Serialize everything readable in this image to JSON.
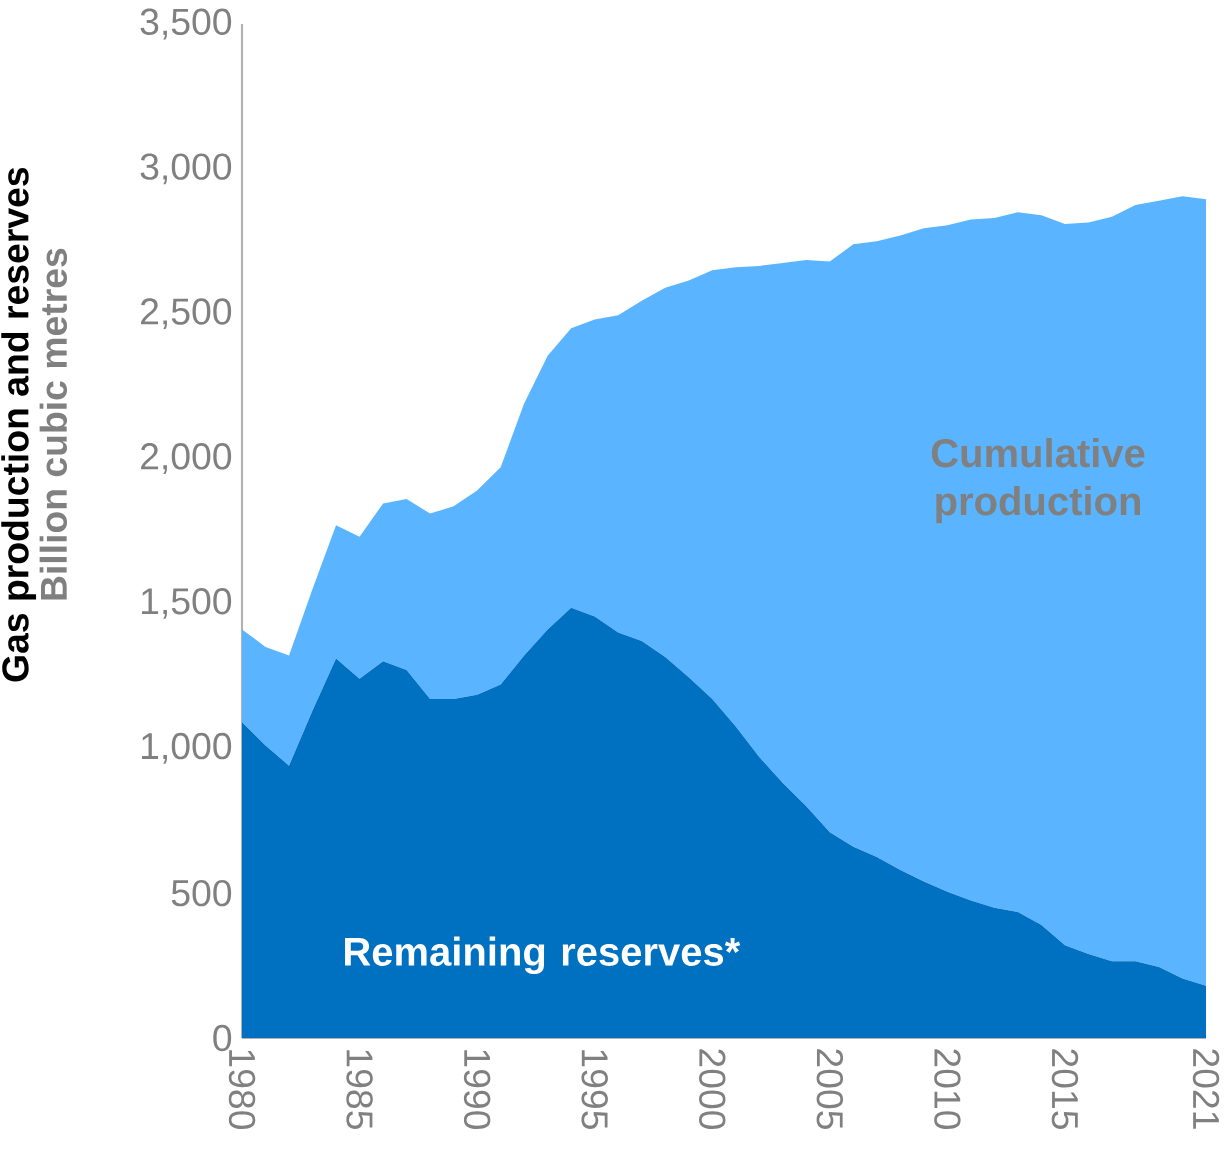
{
  "chart_data": {
    "type": "area",
    "stacked": true,
    "title": "Gas production and reserves",
    "ylabel": "Billion cubic metres",
    "x": [
      1980,
      1981,
      1982,
      1983,
      1984,
      1985,
      1986,
      1987,
      1988,
      1989,
      1990,
      1991,
      1992,
      1993,
      1994,
      1995,
      1996,
      1997,
      1998,
      1999,
      2000,
      2001,
      2002,
      2003,
      2004,
      2005,
      2006,
      2007,
      2008,
      2009,
      2010,
      2011,
      2012,
      2013,
      2014,
      2015,
      2016,
      2017,
      2018,
      2019,
      2020,
      2021
    ],
    "series": [
      {
        "name": "Remaining reserves*",
        "color": "#0070c0",
        "values": [
          1090,
          1010,
          940,
          1130,
          1310,
          1240,
          1300,
          1270,
          1170,
          1170,
          1185,
          1220,
          1320,
          1410,
          1485,
          1455,
          1400,
          1370,
          1315,
          1245,
          1170,
          1075,
          970,
          880,
          800,
          710,
          660,
          625,
          580,
          540,
          505,
          475,
          450,
          435,
          390,
          320,
          290,
          265,
          265,
          245,
          205,
          180
        ]
      },
      {
        "name": "Cumulative production",
        "color": "#5ab4ff",
        "values": [
          320,
          340,
          380,
          420,
          460,
          490,
          545,
          590,
          640,
          665,
          705,
          750,
          870,
          945,
          965,
          1025,
          1095,
          1175,
          1275,
          1370,
          1480,
          1585,
          1695,
          1795,
          1885,
          1970,
          2080,
          2125,
          2190,
          2255,
          2300,
          2350,
          2380,
          2415,
          2450,
          2490,
          2525,
          2570,
          2610,
          2645,
          2700,
          2715
        ]
      }
    ],
    "xlim": [
      1980,
      2021
    ],
    "xticks": [
      1980,
      1985,
      1990,
      1995,
      2000,
      2005,
      2010,
      2015,
      2021
    ],
    "ylim": [
      0,
      3500
    ],
    "yticks": [
      0,
      500,
      {
        "value": 1000,
        "label": "1,000"
      },
      {
        "value": 1500,
        "label": "1,500"
      },
      {
        "value": 2000,
        "label": "2,000"
      },
      {
        "value": 2500,
        "label": "2,500"
      },
      {
        "value": 3000,
        "label": "3,000"
      },
      {
        "value": 3500,
        "label": "3,500"
      }
    ],
    "grid": false
  }
}
